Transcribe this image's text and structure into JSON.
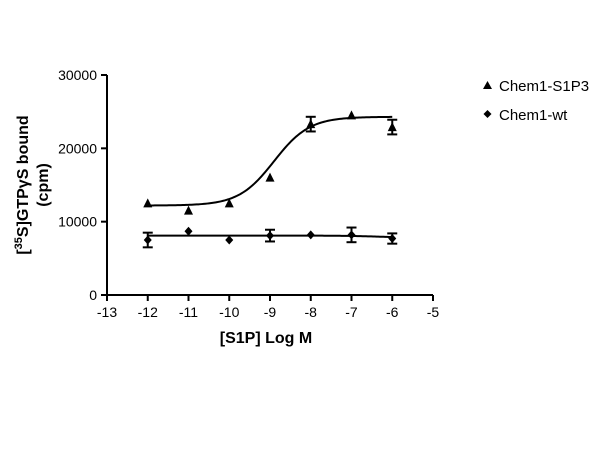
{
  "chart_data": {
    "type": "scatter",
    "xlabel": "[S1P] Log M",
    "ylabel_line1_prefix": "[",
    "ylabel_sup": "35",
    "ylabel_line1_suffix": "S]GTPγS bound",
    "ylabel_line2": "(cpm)",
    "xlim": [
      -13,
      -5
    ],
    "ylim": [
      0,
      30000
    ],
    "x_ticks": [
      "-13",
      "-12",
      "-11",
      "-10",
      "-9",
      "-8",
      "-7",
      "-6",
      "-5"
    ],
    "y_ticks": [
      "0",
      "10000",
      "20000",
      "30000"
    ],
    "x_tick_values": [
      -13,
      -12,
      -11,
      -10,
      -9,
      -8,
      -7,
      -6,
      -5
    ],
    "y_tick_values": [
      0,
      10000,
      20000,
      30000
    ],
    "legend_position": "right",
    "series": [
      {
        "name": "Chem1-S1P3",
        "marker": "triangle",
        "x": [
          -12,
          -11,
          -10,
          -9,
          -8,
          -7,
          -6
        ],
        "y": [
          12500,
          11500,
          12500,
          16000,
          23300,
          24500,
          22900
        ],
        "err": [
          0,
          0,
          0,
          0,
          1000,
          0,
          1000
        ],
        "fit": {
          "bottom": 12200,
          "top": 24300,
          "logec50": -8.9,
          "hill": 1.0
        }
      },
      {
        "name": "Chem1-wt",
        "marker": "diamond",
        "x": [
          -12,
          -11,
          -10,
          -9,
          -8,
          -7,
          -6
        ],
        "y": [
          7500,
          8700,
          7500,
          8100,
          8200,
          8200,
          7700
        ],
        "err": [
          1000,
          0,
          0,
          800,
          0,
          1000,
          700
        ],
        "fit": {
          "bottom": 8100,
          "top": 7800,
          "logec50": -6.3,
          "hill": 1.0
        }
      }
    ]
  }
}
